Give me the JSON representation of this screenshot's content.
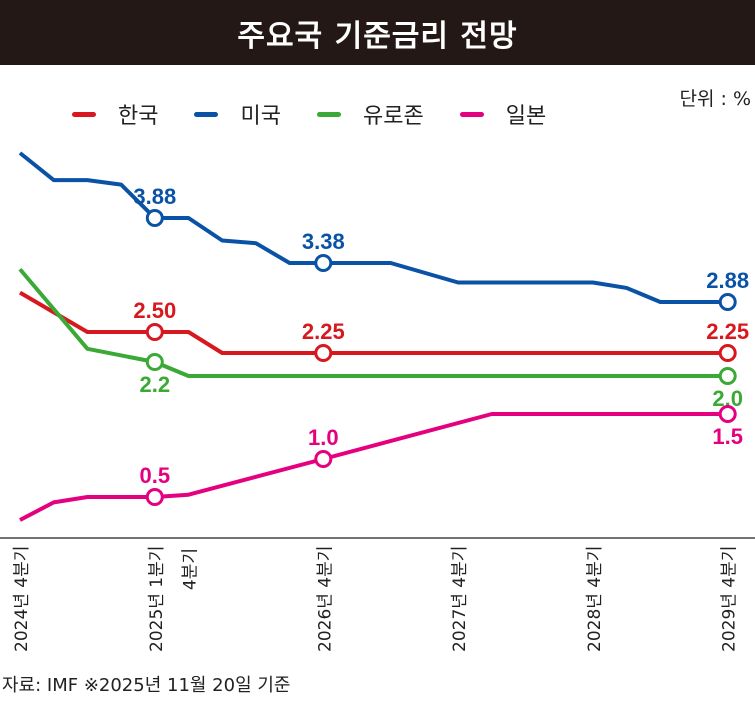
{
  "title": "주요국 기준금리 전망",
  "unit": "단위 : %",
  "footer": "자료: IMF ※2025년 11월 20일 기준",
  "chart_data": {
    "type": "line",
    "title": "주요국 기준금리 전망",
    "legend_position": "top",
    "grid": false,
    "x_ticks": [
      {
        "x": 0,
        "label": "2024년 4분기"
      },
      {
        "x": 4,
        "label": "2025년 1분기"
      },
      {
        "x": 5,
        "label": "4분기"
      },
      {
        "x": 9,
        "label": "2026년 4분기"
      },
      {
        "x": 13,
        "label": "2027년 4분기"
      },
      {
        "x": 17,
        "label": "2028년 4분기"
      },
      {
        "x": 21,
        "label": "2029년 4분기"
      }
    ],
    "series": [
      {
        "name": "한국",
        "color": "#d7191f",
        "x": [
          0,
          2,
          4,
          5,
          6,
          9,
          21
        ],
        "y": [
          3.0,
          2.5,
          2.5,
          2.5,
          2.25,
          2.25,
          2.25
        ],
        "labels": [
          {
            "x": 4,
            "y": 2.5,
            "text": "2.50",
            "pos": "above"
          },
          {
            "x": 9,
            "y": 2.25,
            "text": "2.25",
            "pos": "above"
          },
          {
            "x": 21,
            "y": 2.25,
            "text": "2.25",
            "pos": "above"
          }
        ]
      },
      {
        "name": "미국",
        "color": "#0a52a5",
        "x": [
          0,
          1,
          2,
          3,
          4,
          5,
          6,
          7,
          8,
          9,
          11,
          13,
          17,
          18,
          19,
          21
        ],
        "y": [
          4.6,
          4.3,
          4.3,
          4.25,
          3.88,
          3.88,
          3.63,
          3.6,
          3.38,
          3.38,
          3.38,
          3.13,
          3.13,
          3.06,
          2.88,
          2.88
        ],
        "labels": [
          {
            "x": 4,
            "y": 3.88,
            "text": "3.88",
            "pos": "above"
          },
          {
            "x": 9,
            "y": 3.38,
            "text": "3.38",
            "pos": "above"
          },
          {
            "x": 21,
            "y": 2.88,
            "text": "2.88",
            "pos": "above"
          }
        ]
      },
      {
        "name": "유로존",
        "color": "#3aa935",
        "x": [
          0,
          2,
          4,
          5,
          21
        ],
        "y": [
          3.3,
          2.3,
          2.2,
          2.0,
          2.0
        ],
        "labels": [
          {
            "x": 4,
            "y": 2.2,
            "text": "2.2",
            "pos": "below"
          },
          {
            "x": 21,
            "y": 2.0,
            "text": "2.0",
            "pos": "below"
          }
        ]
      },
      {
        "name": "일본",
        "color": "#e4007f",
        "x": [
          0,
          1,
          2,
          4,
          5,
          9,
          14,
          21
        ],
        "y": [
          0.2,
          0.43,
          0.5,
          0.5,
          0.53,
          1.0,
          1.5,
          1.5
        ],
        "labels": [
          {
            "x": 4,
            "y": 0.5,
            "text": "0.5",
            "pos": "above"
          },
          {
            "x": 9,
            "y": 1.0,
            "text": "1.0",
            "pos": "above"
          },
          {
            "x": 21,
            "y": 1.5,
            "text": "1.5",
            "pos": "below"
          }
        ]
      }
    ]
  }
}
